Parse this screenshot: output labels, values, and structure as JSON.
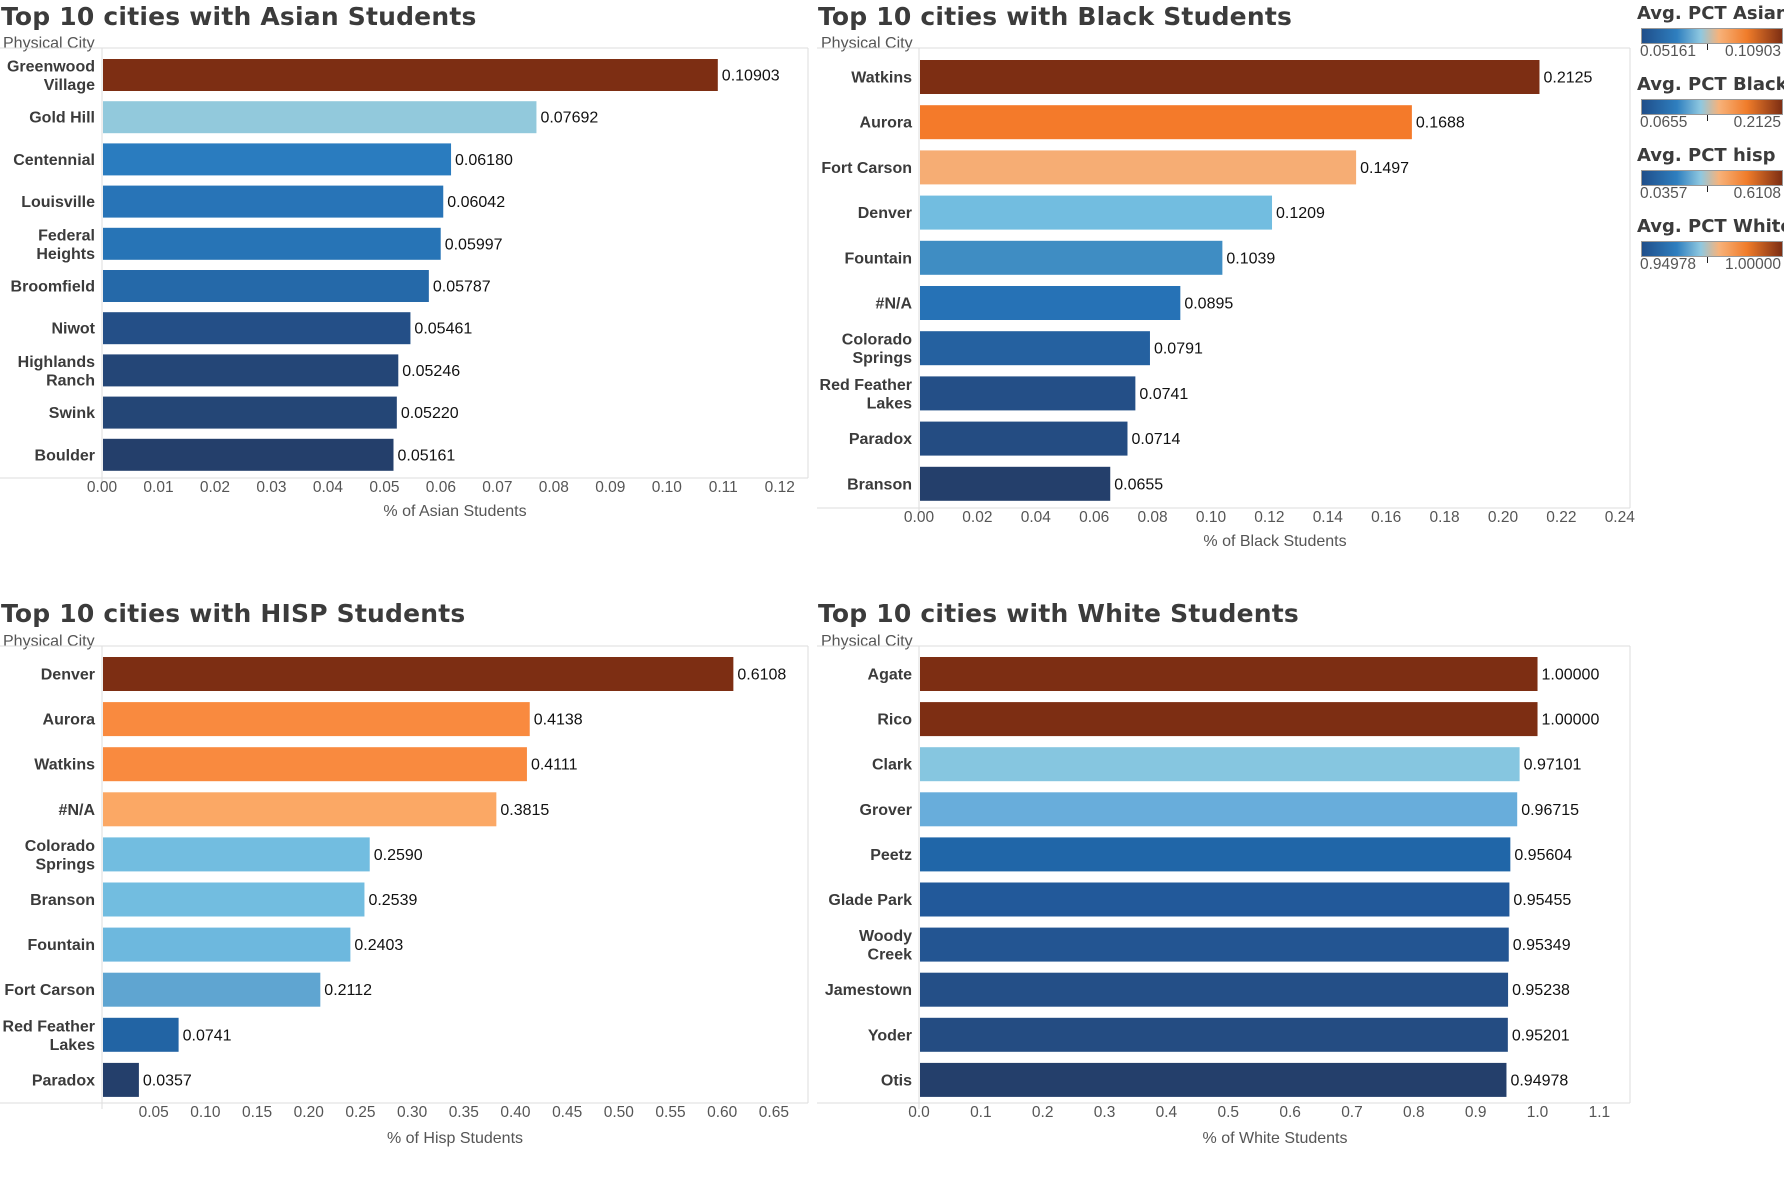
{
  "chart_data": [
    {
      "type": "bar",
      "title": "Top 10 cities with Asian Students",
      "dimension_label": "Physical City",
      "xlabel": "% of Asian Students",
      "categories": [
        [
          "Greenwood",
          "Village"
        ],
        [
          "Gold Hill"
        ],
        [
          "Centennial"
        ],
        [
          "Louisville"
        ],
        [
          "Federal",
          "Heights"
        ],
        [
          "Broomfield"
        ],
        [
          "Niwot"
        ],
        [
          "Highlands",
          "Ranch"
        ],
        [
          "Swink"
        ],
        [
          "Boulder"
        ]
      ],
      "values": [
        0.10903,
        0.07692,
        0.0618,
        0.06042,
        0.05997,
        0.05787,
        0.05461,
        0.05246,
        0.0522,
        0.05161
      ],
      "value_labels": [
        "0.10903",
        "0.07692",
        "0.06180",
        "0.06042",
        "0.05997",
        "0.05787",
        "0.05461",
        "0.05246",
        "0.05220",
        "0.05161"
      ],
      "colors": [
        "#7d2e13",
        "#92c9dc",
        "#2a7cbf",
        "#2874b7",
        "#2774b6",
        "#2569a9",
        "#244f87",
        "#244677",
        "#244676",
        "#243f6b"
      ],
      "xlim": [
        0,
        0.125
      ],
      "xticks": [
        0,
        0.01,
        0.02,
        0.03,
        0.04,
        0.05,
        0.06,
        0.07,
        0.08,
        0.09,
        0.1,
        0.11,
        0.12
      ],
      "xtick_labels": [
        "0.00",
        "0.01",
        "0.02",
        "0.03",
        "0.04",
        "0.05",
        "0.06",
        "0.07",
        "0.08",
        "0.09",
        "0.10",
        "0.11",
        "0.12"
      ]
    },
    {
      "type": "bar",
      "title": "Top 10 cities with Black Students",
      "dimension_label": "Physical City",
      "xlabel": "% of Black Students",
      "categories": [
        [
          "Watkins"
        ],
        [
          "Aurora"
        ],
        [
          "Fort Carson"
        ],
        [
          "Denver"
        ],
        [
          "Fountain"
        ],
        [
          "#N/A"
        ],
        [
          "Colorado",
          "Springs"
        ],
        [
          "Red Feather",
          "Lakes"
        ],
        [
          "Paradox"
        ],
        [
          "Branson"
        ]
      ],
      "values": [
        0.2125,
        0.1688,
        0.1497,
        0.1209,
        0.1039,
        0.0895,
        0.0791,
        0.0741,
        0.0714,
        0.0655
      ],
      "value_labels": [
        "0.2125",
        "0.1688",
        "0.1497",
        "0.1209",
        "0.1039",
        "0.0895",
        "0.0791",
        "0.0741",
        "0.0714",
        "0.0655"
      ],
      "colors": [
        "#7d2e13",
        "#f47a2a",
        "#f6ad74",
        "#72bde0",
        "#3f8dc3",
        "#2672b6",
        "#2561a0",
        "#244f87",
        "#244c82",
        "#243f6b"
      ],
      "xlim": [
        0,
        0.2435
      ],
      "xticks": [
        0,
        0.02,
        0.04,
        0.06,
        0.08,
        0.1,
        0.12,
        0.14,
        0.16,
        0.18,
        0.2,
        0.22,
        0.24
      ],
      "xtick_labels": [
        "0.00",
        "0.02",
        "0.04",
        "0.06",
        "0.08",
        "0.10",
        "0.12",
        "0.14",
        "0.16",
        "0.18",
        "0.20",
        "0.22",
        "0.24"
      ]
    },
    {
      "type": "bar",
      "title": "Top 10 cities with HISP Students",
      "dimension_label": "Physical City",
      "xlabel": "% of Hisp Students",
      "categories": [
        [
          "Denver"
        ],
        [
          "Aurora"
        ],
        [
          "Watkins"
        ],
        [
          "#N/A"
        ],
        [
          "Colorado",
          "Springs"
        ],
        [
          "Branson"
        ],
        [
          "Fountain"
        ],
        [
          "Fort Carson"
        ],
        [
          "Red Feather",
          "Lakes"
        ],
        [
          "Paradox"
        ]
      ],
      "values": [
        0.6108,
        0.4138,
        0.4111,
        0.3815,
        0.259,
        0.2539,
        0.2403,
        0.2112,
        0.0741,
        0.0357
      ],
      "value_labels": [
        "0.6108",
        "0.4138",
        "0.4111",
        "0.3815",
        "0.2590",
        "0.2539",
        "0.2403",
        "0.2112",
        "0.0741",
        "0.0357"
      ],
      "colors": [
        "#7d2e13",
        "#f98a3f",
        "#f98a3f",
        "#fba865",
        "#72bde0",
        "#72bde0",
        "#6db8de",
        "#5fa5d1",
        "#2264a4",
        "#243f6b"
      ],
      "xlim": [
        0,
        0.683
      ],
      "xticks": [
        0.05,
        0.1,
        0.15,
        0.2,
        0.25,
        0.3,
        0.35,
        0.4,
        0.45,
        0.5,
        0.55,
        0.6,
        0.65
      ],
      "xtick_labels": [
        "0.05",
        "0.10",
        "0.15",
        "0.20",
        "0.25",
        "0.30",
        "0.35",
        "0.40",
        "0.45",
        "0.50",
        "0.55",
        "0.60",
        "0.65"
      ]
    },
    {
      "type": "bar",
      "title": "Top 10 cities with White Students",
      "dimension_label": "Physical City",
      "xlabel": "% of White Students",
      "categories": [
        [
          "Agate"
        ],
        [
          "Rico"
        ],
        [
          "Clark"
        ],
        [
          "Grover"
        ],
        [
          "Peetz"
        ],
        [
          "Glade Park"
        ],
        [
          "Woody",
          "Creek"
        ],
        [
          "Jamestown"
        ],
        [
          "Yoder"
        ],
        [
          "Otis"
        ]
      ],
      "values": [
        1.0,
        1.0,
        0.97101,
        0.96715,
        0.95604,
        0.95455,
        0.95349,
        0.95238,
        0.95201,
        0.94978
      ],
      "value_labels": [
        "1.00000",
        "1.00000",
        "0.97101",
        "0.96715",
        "0.95604",
        "0.95455",
        "0.95349",
        "0.95238",
        "0.95201",
        "0.94978"
      ],
      "colors": [
        "#7d2e13",
        "#7d2e13",
        "#86c6e0",
        "#68addb",
        "#2066a8",
        "#22599a",
        "#235592",
        "#244f87",
        "#244c82",
        "#243f6b"
      ],
      "xlim": [
        0,
        1.1495
      ],
      "xticks": [
        0,
        0.1,
        0.2,
        0.3,
        0.4,
        0.5,
        0.6,
        0.7,
        0.8,
        0.9,
        1.0,
        1.1
      ],
      "xtick_labels": [
        "0.0",
        "0.1",
        "0.2",
        "0.3",
        "0.4",
        "0.5",
        "0.6",
        "0.7",
        "0.8",
        "0.9",
        "1.0",
        "1.1"
      ]
    }
  ],
  "legends": [
    {
      "title": "Avg. PCT Asian",
      "min": "0.05161",
      "max": "0.10903",
      "mid_mark": 0.42
    },
    {
      "title": "Avg. PCT Black",
      "min": "0.0655",
      "max": "0.2125",
      "mid_mark": 0.42
    },
    {
      "title": "Avg. PCT hisp",
      "min": "0.0357",
      "max": "0.6108",
      "mid_mark": 0.42
    },
    {
      "title": "Avg. PCT White",
      "min": "0.94978",
      "max": "1.00000",
      "mid_mark": 0.42
    }
  ]
}
